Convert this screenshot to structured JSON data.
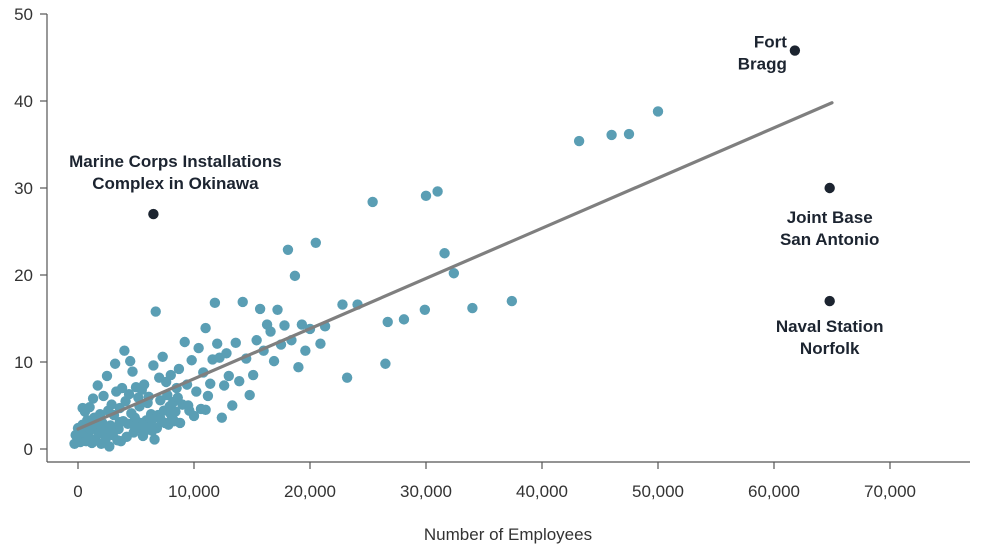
{
  "chart_data": {
    "type": "scatter",
    "title": "",
    "xlabel": "Number of Employees",
    "ylabel": "",
    "xlim": [
      -2500,
      70000
    ],
    "ylim": [
      0,
      50
    ],
    "x_ticks": [
      0,
      10000,
      20000,
      30000,
      40000,
      50000,
      60000,
      70000
    ],
    "x_tick_labels": [
      "0",
      "10,000",
      "20,000",
      "30,000",
      "40,000",
      "50,000",
      "60,000",
      "70,000"
    ],
    "y_ticks": [
      0,
      10,
      20,
      30,
      40,
      50
    ],
    "y_tick_labels": [
      "0",
      "10",
      "20",
      "30",
      "40",
      "50"
    ],
    "grid": false,
    "colors": {
      "points": "#5a9eb4",
      "highlight": "#1c2430",
      "trendline": "#7f7f7f",
      "axis": "#555555"
    },
    "trendline": {
      "x": [
        0,
        65000
      ],
      "y": [
        2.3,
        39.8
      ]
    },
    "series": [
      {
        "points": [
          [
            -300,
            0.6
          ],
          [
            -200,
            1.6
          ],
          [
            0,
            2.4
          ],
          [
            100,
            1.3
          ],
          [
            200,
            0.8
          ],
          [
            400,
            2.8
          ],
          [
            500,
            1.9
          ],
          [
            600,
            4.3
          ],
          [
            700,
            0.9
          ],
          [
            800,
            3.3
          ],
          [
            900,
            1.5
          ],
          [
            1000,
            4.8
          ],
          [
            1100,
            2.2
          ],
          [
            1200,
            0.7
          ],
          [
            1300,
            5.8
          ],
          [
            1400,
            3.6
          ],
          [
            1500,
            1.1
          ],
          [
            1600,
            2.6
          ],
          [
            1700,
            7.3
          ],
          [
            1800,
            1.8
          ],
          [
            1900,
            4.0
          ],
          [
            2000,
            0.6
          ],
          [
            2100,
            3.0
          ],
          [
            2200,
            6.1
          ],
          [
            2300,
            2.0
          ],
          [
            2400,
            1.2
          ],
          [
            2500,
            8.4
          ],
          [
            2600,
            4.4
          ],
          [
            2700,
            0.3
          ],
          [
            2800,
            2.7
          ],
          [
            2900,
            5.1
          ],
          [
            3000,
            1.6
          ],
          [
            3100,
            3.9
          ],
          [
            3200,
            9.8
          ],
          [
            3300,
            6.6
          ],
          [
            3400,
            1.0
          ],
          [
            3500,
            2.3
          ],
          [
            3600,
            4.7
          ],
          [
            3700,
            0.9
          ],
          [
            3800,
            7.0
          ],
          [
            3900,
            3.2
          ],
          [
            4000,
            11.3
          ],
          [
            4100,
            5.5
          ],
          [
            4200,
            1.4
          ],
          [
            4300,
            2.9
          ],
          [
            4400,
            6.3
          ],
          [
            4500,
            10.1
          ],
          [
            4600,
            4.1
          ],
          [
            4700,
            8.9
          ],
          [
            4800,
            1.9
          ],
          [
            4900,
            3.6
          ],
          [
            5000,
            7.1
          ],
          [
            5100,
            2.4
          ],
          [
            5200,
            5.9
          ],
          [
            5300,
            4.9
          ],
          [
            5400,
            3.0
          ],
          [
            5500,
            6.8
          ],
          [
            5600,
            1.5
          ],
          [
            5700,
            7.4
          ],
          [
            5800,
            2.1
          ],
          [
            5900,
            3.3
          ],
          [
            6000,
            5.3
          ],
          [
            6100,
            6.0
          ],
          [
            6200,
            2.9
          ],
          [
            6300,
            4.0
          ],
          [
            6400,
            3.4
          ],
          [
            6500,
            9.6
          ],
          [
            6600,
            1.1
          ],
          [
            6700,
            15.8
          ],
          [
            6800,
            2.4
          ],
          [
            6900,
            3.9
          ],
          [
            7000,
            8.2
          ],
          [
            7100,
            5.6
          ],
          [
            7200,
            3.1
          ],
          [
            7300,
            10.6
          ],
          [
            7400,
            4.4
          ],
          [
            7500,
            3.0
          ],
          [
            7600,
            7.7
          ],
          [
            7700,
            6.2
          ],
          [
            7800,
            2.8
          ],
          [
            7900,
            4.9
          ],
          [
            8000,
            8.5
          ],
          [
            8100,
            3.7
          ],
          [
            8200,
            5.4
          ],
          [
            8300,
            3.2
          ],
          [
            8400,
            4.3
          ],
          [
            8500,
            7.0
          ],
          [
            8600,
            5.9
          ],
          [
            8700,
            9.2
          ],
          [
            8800,
            3.0
          ],
          [
            9000,
            5.1
          ],
          [
            9200,
            12.3
          ],
          [
            9400,
            7.4
          ],
          [
            9600,
            4.4
          ],
          [
            9800,
            10.2
          ],
          [
            10000,
            3.8
          ],
          [
            10200,
            6.6
          ],
          [
            10400,
            11.6
          ],
          [
            10600,
            4.6
          ],
          [
            10800,
            8.8
          ],
          [
            11000,
            13.9
          ],
          [
            11200,
            6.1
          ],
          [
            11400,
            7.5
          ],
          [
            11600,
            10.3
          ],
          [
            11800,
            16.8
          ],
          [
            12000,
            12.1
          ],
          [
            12200,
            10.5
          ],
          [
            12400,
            3.6
          ],
          [
            12600,
            7.3
          ],
          [
            12800,
            11.0
          ],
          [
            13000,
            8.4
          ],
          [
            13300,
            5.0
          ],
          [
            13600,
            12.2
          ],
          [
            13900,
            7.8
          ],
          [
            14200,
            16.9
          ],
          [
            14500,
            10.4
          ],
          [
            14800,
            6.2
          ],
          [
            15100,
            8.5
          ],
          [
            15400,
            12.5
          ],
          [
            15700,
            16.1
          ],
          [
            16000,
            11.3
          ],
          [
            16300,
            14.3
          ],
          [
            16600,
            13.5
          ],
          [
            16900,
            10.1
          ],
          [
            17200,
            16.0
          ],
          [
            17500,
            12.0
          ],
          [
            17800,
            14.2
          ],
          [
            18100,
            22.9
          ],
          [
            18400,
            12.5
          ],
          [
            18700,
            19.9
          ],
          [
            19000,
            9.4
          ],
          [
            19300,
            14.3
          ],
          [
            19600,
            11.3
          ],
          [
            20000,
            13.8
          ],
          [
            20500,
            23.7
          ],
          [
            20900,
            12.1
          ],
          [
            21300,
            14.1
          ],
          [
            22800,
            16.6
          ],
          [
            23200,
            8.2
          ],
          [
            24100,
            16.6
          ],
          [
            25400,
            28.4
          ],
          [
            26500,
            9.8
          ],
          [
            26700,
            14.6
          ],
          [
            28100,
            14.9
          ],
          [
            29900,
            16.0
          ],
          [
            30000,
            29.1
          ],
          [
            31000,
            29.6
          ],
          [
            31600,
            22.5
          ],
          [
            32400,
            20.2
          ],
          [
            34000,
            16.2
          ],
          [
            37400,
            17.0
          ],
          [
            43200,
            35.4
          ],
          [
            46000,
            36.1
          ],
          [
            47500,
            36.2
          ],
          [
            50000,
            38.8
          ],
          [
            400,
            4.7
          ],
          [
            1500,
            3.0
          ],
          [
            2900,
            2.0
          ],
          [
            3600,
            3.1
          ],
          [
            4900,
            2.6
          ],
          [
            5600,
            2.8
          ],
          [
            6400,
            2.1
          ],
          [
            7100,
            3.5
          ],
          [
            8000,
            4.0
          ],
          [
            9500,
            5.0
          ],
          [
            11000,
            4.5
          ]
        ]
      }
    ],
    "highlighted": [
      {
        "x": 6500,
        "y": 27.0,
        "label": "Marine Corps Installations\nComplex in Okinawa"
      },
      {
        "x": 61800,
        "y": 45.8,
        "label": "Fort\nBragg"
      },
      {
        "x": 64800,
        "y": 30.0,
        "label": "Joint Base\nSan Antonio"
      },
      {
        "x": 64800,
        "y": 17.0,
        "label": "Naval Station\nNorfolk"
      }
    ]
  }
}
